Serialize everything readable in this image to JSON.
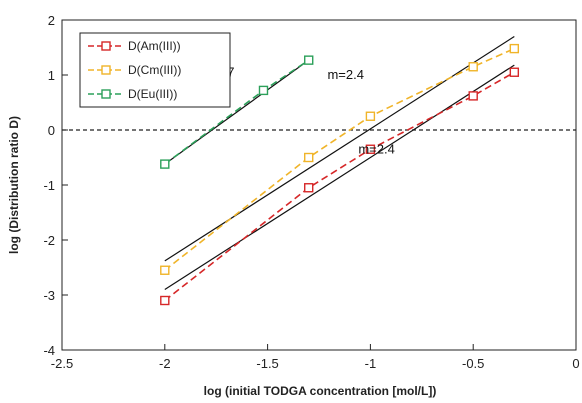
{
  "chart_data": {
    "type": "scatter",
    "xlabel": "log (initial TODGA concentration [mol/L])",
    "ylabel": "log (Distribution ratio D)",
    "xlim": [
      -2.5,
      0
    ],
    "ylim": [
      -4,
      2
    ],
    "x_ticks": [
      "-2.5",
      "-2",
      "-1.5",
      "-1",
      "-0.5",
      "0"
    ],
    "y_ticks": [
      "2",
      "1",
      "0",
      "-1",
      "-2",
      "-3",
      "-4"
    ],
    "grid": false,
    "legend_position": "top-left",
    "reference_line": {
      "y": 0,
      "style": "dashed",
      "color": "#222222"
    },
    "series": [
      {
        "name": "D(Am(III))",
        "color": "#d62728",
        "marker": "square-open",
        "line": "dashed",
        "x": [
          -2.0,
          -1.3,
          -1.0,
          -0.5,
          -0.3
        ],
        "y": [
          -3.1,
          -1.05,
          -0.35,
          0.62,
          1.05
        ]
      },
      {
        "name": "D(Cm(III))",
        "color": "#f0b429",
        "marker": "square-open",
        "line": "dashed",
        "x": [
          -2.0,
          -1.3,
          -1.0,
          -0.5,
          -0.3
        ],
        "y": [
          -2.55,
          -0.5,
          0.25,
          1.15,
          1.48
        ]
      },
      {
        "name": "D(Eu(III))",
        "color": "#2ca05a",
        "marker": "square-open",
        "line": "dashed",
        "x": [
          -2.0,
          -1.52,
          -1.3
        ],
        "y": [
          -0.62,
          0.72,
          1.27
        ]
      }
    ],
    "fit_lines": [
      {
        "series": "D(Eu(III))",
        "x": [
          -2.0,
          -1.3
        ],
        "y": [
          -0.62,
          1.27
        ],
        "color": "#111111"
      },
      {
        "series": "D(Cm(III))",
        "x": [
          -2.0,
          -0.3
        ],
        "y": [
          -2.38,
          1.7
        ],
        "color": "#111111"
      },
      {
        "series": "D(Am(III))",
        "x": [
          -2.0,
          -0.3
        ],
        "y": [
          -2.9,
          1.18
        ],
        "color": "#111111"
      }
    ],
    "annotations": [
      {
        "text": "m=2.7",
        "x": -1.75,
        "y": 1.05
      },
      {
        "text": "m=2.4",
        "x": -1.12,
        "y": 1.0
      },
      {
        "text": "m=2.4",
        "x": -0.97,
        "y": -0.35
      }
    ]
  }
}
